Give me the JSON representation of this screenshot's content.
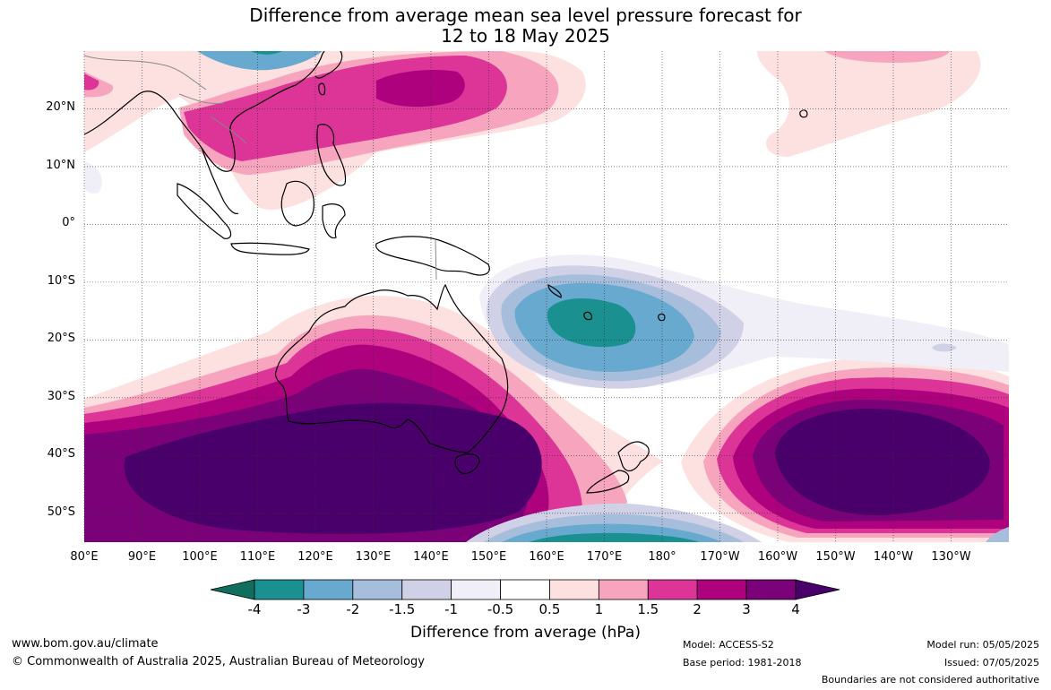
{
  "title": {
    "line1": "Difference from average mean sea level pressure forecast for",
    "line2": "12 to 18 May 2025"
  },
  "map": {
    "lat_labels": [
      "20°N",
      "10°N",
      "0°",
      "10°S",
      "20°S",
      "30°S",
      "40°S",
      "50°S"
    ],
    "lon_labels": [
      "80°E",
      "90°E",
      "100°E",
      "110°E",
      "120°E",
      "130°E",
      "140°E",
      "150°E",
      "160°E",
      "170°E",
      "180°",
      "170°W",
      "160°W",
      "150°W",
      "140°W",
      "130°W"
    ],
    "lat_values": [
      20,
      10,
      0,
      -10,
      -20,
      -30,
      -40,
      -50
    ],
    "lon_values": [
      80,
      90,
      100,
      110,
      120,
      130,
      140,
      150,
      160,
      170,
      180,
      190,
      200,
      210,
      220,
      230
    ],
    "extent": {
      "lon": [
        80,
        240
      ],
      "lat": [
        -55,
        30
      ]
    },
    "anomaly_features": [
      {
        "region": "Southern Ocean south of Australia",
        "sign": "positive",
        "peak_hPa": 4
      },
      {
        "region": "Southeast Pacific near 145°W 40°S",
        "sign": "positive",
        "peak_hPa": 4
      },
      {
        "region": "Southwest Pacific near 170°E 18°S",
        "sign": "negative",
        "peak_hPa": -3
      },
      {
        "region": "South China Sea / Philippine Sea",
        "sign": "positive",
        "peak_hPa": 3
      },
      {
        "region": "Southern Ocean near 170°E 55°S",
        "sign": "negative",
        "peak_hPa": -3
      }
    ]
  },
  "colorbar": {
    "ticks": [
      "-4",
      "-3",
      "-2",
      "-1.5",
      "-1",
      "-0.5",
      "0.5",
      "1",
      "1.5",
      "2",
      "3",
      "4"
    ],
    "colors": [
      "#0f6e5e",
      "#1a9090",
      "#67a9cf",
      "#a6bddb",
      "#d0d1e6",
      "#f0eef6",
      "#ffffff",
      "#fde0e0",
      "#f7a5bf",
      "#dd3497",
      "#ae017e",
      "#7a0177",
      "#49006a"
    ],
    "label": "Difference from average (hPa)"
  },
  "footer": {
    "url": "www.bom.gov.au/climate",
    "copyright": "© Commonwealth of Australia 2025, Australian Bureau of Meteorology",
    "model": "Model: ACCESS-S2",
    "base_period": "Base period: 1981-2018",
    "model_run": "Model run: 05/05/2025",
    "issued": "Issued: 07/05/2025",
    "disclaimer": "Boundaries are not considered authoritative"
  }
}
